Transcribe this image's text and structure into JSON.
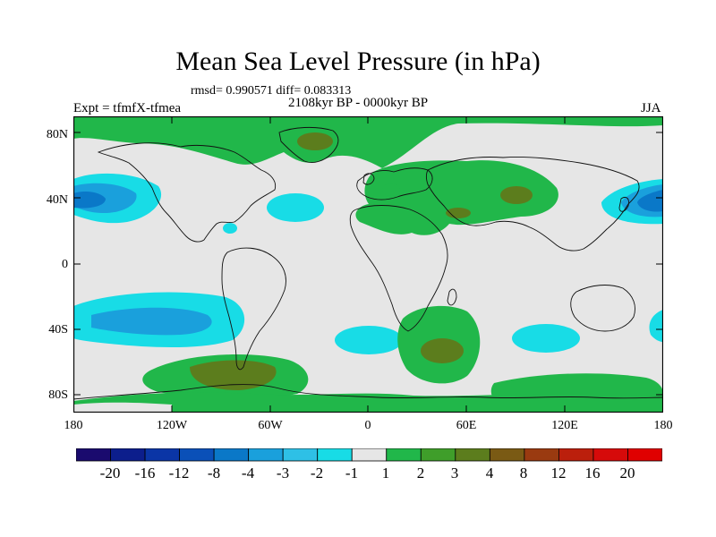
{
  "header": {
    "title": "Mean Sea Level Pressure (in hPa)",
    "stats": "rmsd= 0.990571 diff= 0.083313",
    "period": "2108kyr BP - 0000kyr BP",
    "experiment": "Expt = tfmfX-tfmea",
    "season": "JJA"
  },
  "axes": {
    "lat_labels": [
      "80N",
      "40N",
      "0",
      "40S",
      "80S"
    ],
    "lon_labels": [
      "180",
      "120W",
      "60W",
      "0",
      "60E",
      "120E",
      "180"
    ]
  },
  "colorbar": {
    "labels": [
      "-20",
      "-16",
      "-12",
      "-8",
      "-4",
      "-3",
      "-2",
      "-1",
      "1",
      "2",
      "3",
      "4",
      "8",
      "12",
      "16",
      "20"
    ],
    "colors": [
      "#1a0a6e",
      "#0c1e8c",
      "#0a35a6",
      "#0a50b8",
      "#0a78c8",
      "#1aa0dc",
      "#2ec0e6",
      "#18dce6",
      "#e6e6e6",
      "#21b74a",
      "#3f9e2a",
      "#5c7d1d",
      "#7a5a14",
      "#9a3a10",
      "#bb1f0c",
      "#d60a0a",
      "#e00000"
    ]
  },
  "palette": {
    "neutral": "#e6e6e6",
    "green": "#21b74a",
    "dark_green": "#3f9e2a",
    "olive": "#5c7d1d",
    "cyan": "#18dce6",
    "blue": "#1aa0dc",
    "dark_blue": "#0a78c8"
  }
}
